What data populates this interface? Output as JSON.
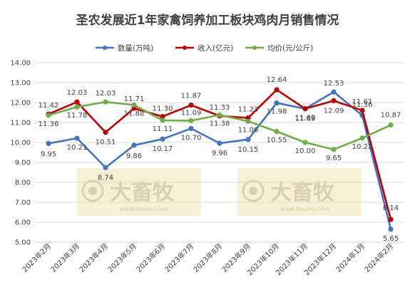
{
  "chart_data": {
    "type": "line",
    "title": "圣农发展近1年家禽饲养加工板块鸡肉月销售情况",
    "categories": [
      "2023年2月",
      "2023年3月",
      "2023年4月",
      "2023年5月",
      "2023年6月",
      "2023年7月",
      "2023年8月",
      "2023年9月",
      "2023年10月",
      "2023年11月",
      "2023年12月",
      "2024年1月",
      "2024年2月"
    ],
    "ylim": [
      5.0,
      14.0
    ],
    "yticks": [
      "5.00",
      "6.00",
      "7.00",
      "8.00",
      "9.00",
      "10.00",
      "11.00",
      "12.00",
      "13.00",
      "14.00"
    ],
    "grid": true,
    "legend_position": "top",
    "series": [
      {
        "name": "数量(万吨)",
        "color": "#4472c4",
        "values": [
          9.95,
          10.21,
          8.74,
          9.86,
          10.17,
          10.7,
          9.96,
          10.15,
          11.98,
          11.69,
          12.53,
          11.36,
          5.65
        ],
        "labels": [
          "9.95",
          "10.21",
          "8.74",
          "9.86",
          "10.17",
          "10.70",
          "9.96",
          "10.15",
          "11.98",
          "11.69",
          "12.53",
          "11.36",
          "5.65"
        ]
      },
      {
        "name": "收入(亿元)",
        "color": "#c00000",
        "values": [
          11.42,
          12.03,
          10.51,
          11.71,
          11.3,
          11.87,
          11.33,
          11.23,
          12.64,
          11.69,
          12.09,
          11.61,
          6.14
        ],
        "labels": [
          "11.42",
          "12.03",
          "10.51",
          "11.71",
          "11.30",
          "11.87",
          "11.33",
          "11.23",
          "12.64",
          "11.69",
          "12.09",
          "11.61",
          "6.14"
        ]
      },
      {
        "name": "均价(元/公斤)",
        "color": "#70ad47",
        "values": [
          11.36,
          11.78,
          12.03,
          11.88,
          11.11,
          11.09,
          11.38,
          11.06,
          10.55,
          10.0,
          9.65,
          10.22,
          10.87
        ],
        "labels": [
          "11.36",
          "11.78",
          "12.03",
          "11.88",
          "11.11",
          "11.09",
          "11.38",
          "11.06",
          "10.55",
          "10.00",
          "9.65",
          "10.22",
          "10.87"
        ]
      }
    ]
  },
  "watermarks": [
    {
      "brand": "大畜牧",
      "site": "www.dxumu.com"
    },
    {
      "brand": "大畜牧",
      "site": "www.dxumu.com"
    }
  ]
}
